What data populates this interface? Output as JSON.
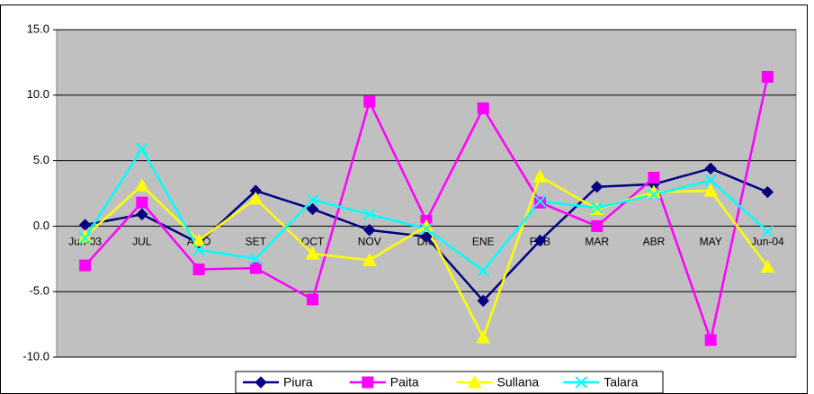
{
  "chart_data": {
    "type": "line",
    "categories": [
      "Jun-03",
      "JUL",
      "AGO",
      "SET",
      "OCT",
      "NOV",
      "DIC",
      "ENE",
      "FEB",
      "MAR",
      "ABR",
      "MAY",
      "Jun-04"
    ],
    "series": [
      {
        "name": "Piura",
        "color": "#000080",
        "marker": "diamond",
        "values": [
          0.1,
          0.9,
          -1.3,
          2.7,
          1.3,
          -0.3,
          -0.8,
          -5.7,
          -1.1,
          3.0,
          3.2,
          4.4,
          2.6
        ]
      },
      {
        "name": "Paita",
        "color": "#FF00FF",
        "marker": "square",
        "values": [
          -3.0,
          1.8,
          -3.3,
          -3.2,
          -5.6,
          9.5,
          0.4,
          9.0,
          1.8,
          0.0,
          3.7,
          -8.7,
          11.4
        ]
      },
      {
        "name": "Sullana",
        "color": "#FFFF00",
        "marker": "triangle",
        "values": [
          -0.8,
          3.1,
          -1.1,
          2.1,
          -2.1,
          -2.6,
          0.0,
          -8.5,
          3.8,
          1.3,
          2.6,
          2.7,
          -3.1
        ]
      },
      {
        "name": "Talara",
        "color": "#00FFFF",
        "marker": "x",
        "values": [
          -0.9,
          5.9,
          -1.8,
          -2.5,
          2.0,
          0.9,
          -0.2,
          -3.4,
          1.9,
          1.4,
          2.4,
          3.5,
          -0.4
        ]
      }
    ],
    "ylim": [
      -10,
      15
    ],
    "yticks": [
      {
        "value": -10,
        "label": "-10.0"
      },
      {
        "value": -5,
        "label": "-5.0"
      },
      {
        "value": 0,
        "label": "0.0"
      },
      {
        "value": 5,
        "label": "5.0"
      },
      {
        "value": 10,
        "label": "10.0"
      },
      {
        "value": 15,
        "label": "15.0"
      }
    ],
    "grid": true,
    "legend": "bottom",
    "plot_background": "#C0C0C0"
  }
}
